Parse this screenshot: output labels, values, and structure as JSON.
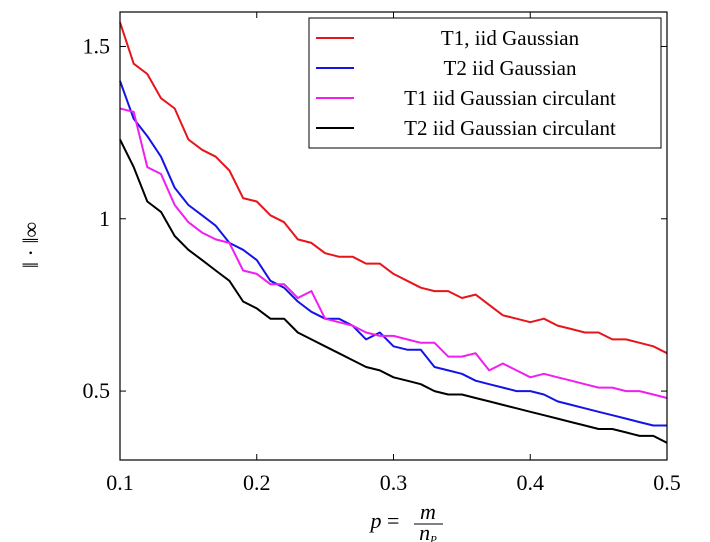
{
  "chart_data": {
    "type": "line",
    "title": "",
    "xlabel": "p = m / n_P",
    "ylabel": "‖ · ‖∞",
    "xlim": [
      0.1,
      0.5
    ],
    "ylim": [
      0.3,
      1.6
    ],
    "x_ticks": [
      0.1,
      0.2,
      0.3,
      0.4,
      0.5
    ],
    "x_tick_labels": [
      "0.1",
      "0.2",
      "0.3",
      "0.4",
      "0.5"
    ],
    "y_ticks": [
      0.5,
      1.0,
      1.5
    ],
    "y_tick_labels": [
      "0.5",
      "1",
      "1.5"
    ],
    "grid": false,
    "legend_position": "top-right",
    "x": [
      0.1,
      0.11,
      0.12,
      0.13,
      0.14,
      0.15,
      0.16,
      0.17,
      0.18,
      0.19,
      0.2,
      0.21,
      0.22,
      0.23,
      0.24,
      0.25,
      0.26,
      0.27,
      0.28,
      0.29,
      0.3,
      0.31,
      0.32,
      0.33,
      0.34,
      0.35,
      0.36,
      0.37,
      0.38,
      0.39,
      0.4,
      0.41,
      0.42,
      0.43,
      0.44,
      0.45,
      0.46,
      0.47,
      0.48,
      0.49,
      0.5
    ],
    "series": [
      {
        "name": "T1, iid Gaussian",
        "color": "#e8141b",
        "values": [
          1.57,
          1.45,
          1.42,
          1.35,
          1.32,
          1.23,
          1.2,
          1.18,
          1.14,
          1.06,
          1.05,
          1.01,
          0.99,
          0.94,
          0.93,
          0.9,
          0.89,
          0.89,
          0.87,
          0.87,
          0.84,
          0.82,
          0.8,
          0.79,
          0.79,
          0.77,
          0.78,
          0.75,
          0.72,
          0.71,
          0.7,
          0.71,
          0.69,
          0.68,
          0.67,
          0.67,
          0.65,
          0.65,
          0.64,
          0.63,
          0.61
        ]
      },
      {
        "name": "T2 iid Gaussian",
        "color": "#1414e6",
        "values": [
          1.4,
          1.29,
          1.24,
          1.18,
          1.09,
          1.04,
          1.01,
          0.98,
          0.93,
          0.91,
          0.88,
          0.82,
          0.8,
          0.76,
          0.73,
          0.71,
          0.71,
          0.69,
          0.65,
          0.67,
          0.63,
          0.62,
          0.62,
          0.57,
          0.56,
          0.55,
          0.53,
          0.52,
          0.51,
          0.5,
          0.5,
          0.49,
          0.47,
          0.46,
          0.45,
          0.44,
          0.43,
          0.42,
          0.41,
          0.4,
          0.4
        ]
      },
      {
        "name": "T1 iid Gaussian circulant",
        "color": "#f01ef0",
        "values": [
          1.32,
          1.31,
          1.15,
          1.13,
          1.04,
          0.99,
          0.96,
          0.94,
          0.93,
          0.85,
          0.84,
          0.81,
          0.81,
          0.77,
          0.79,
          0.71,
          0.7,
          0.69,
          0.67,
          0.66,
          0.66,
          0.65,
          0.64,
          0.64,
          0.6,
          0.6,
          0.61,
          0.56,
          0.58,
          0.56,
          0.54,
          0.55,
          0.54,
          0.53,
          0.52,
          0.51,
          0.51,
          0.5,
          0.5,
          0.49,
          0.48
        ]
      },
      {
        "name": "T2 iid Gaussian circulant",
        "color": "#000000",
        "values": [
          1.23,
          1.15,
          1.05,
          1.02,
          0.95,
          0.91,
          0.88,
          0.85,
          0.82,
          0.76,
          0.74,
          0.71,
          0.71,
          0.67,
          0.65,
          0.63,
          0.61,
          0.59,
          0.57,
          0.56,
          0.54,
          0.53,
          0.52,
          0.5,
          0.49,
          0.49,
          0.48,
          0.47,
          0.46,
          0.45,
          0.44,
          0.43,
          0.42,
          0.41,
          0.4,
          0.39,
          0.39,
          0.38,
          0.37,
          0.37,
          0.35
        ]
      }
    ]
  }
}
